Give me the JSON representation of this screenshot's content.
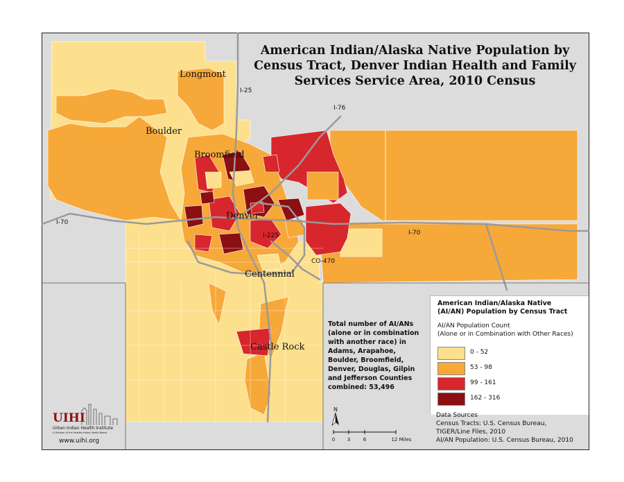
{
  "title": [
    "American Indian/Alaska Native Population by",
    "Census Tract, Denver Indian Health and Family",
    "Services Service Area, 2010 Census"
  ],
  "cities": {
    "longmont": "Longmont",
    "boulder": "Boulder",
    "broomfield": "Broomfield",
    "denver": "Denver",
    "centennial": "Centennial",
    "castle_rock": "Castle Rock"
  },
  "roads": {
    "i25_north": "I-25",
    "i76": "I-76",
    "i70_west": "I-70",
    "i70_east": "I-70",
    "i225": "I-225",
    "co470": "CO-470"
  },
  "stats_text": "Total number of AI/ANs (alone or in combination with another race) in Adams, Arapahoe, Boulder, Broomfield, Denver, Douglas, Gilpin and Jefferson Counties combined: 53,496",
  "legend": {
    "title": [
      "American Indian/Alaska Native",
      "(AI/AN) Population by Census Tract"
    ],
    "subtitle": [
      "AI/AN Population Count",
      "(Alone or in Combination with Other Races)"
    ],
    "classes": [
      {
        "label": "0 - 52",
        "color": "#fde08d"
      },
      {
        "label": "53 - 98",
        "color": "#f6a839"
      },
      {
        "label": "99 - 161",
        "color": "#d7262c"
      },
      {
        "label": "162 - 316",
        "color": "#8c0f12"
      }
    ]
  },
  "sources": [
    "Data Sources",
    "Census Tracts: U.S. Census Bureau,",
    "TIGER/Line Files, 2010",
    "AI/AN Population: U.S. Census Bureau, 2010"
  ],
  "logo": {
    "letters": "UIHI",
    "name": "Urban Indian Health Institute",
    "tagline": "A Division of the Seattle Indian Health Board",
    "url": "www.uihi.org"
  },
  "north_label": "N",
  "scale": {
    "ticks": [
      "0",
      "3",
      "6",
      "12 Miles"
    ]
  }
}
